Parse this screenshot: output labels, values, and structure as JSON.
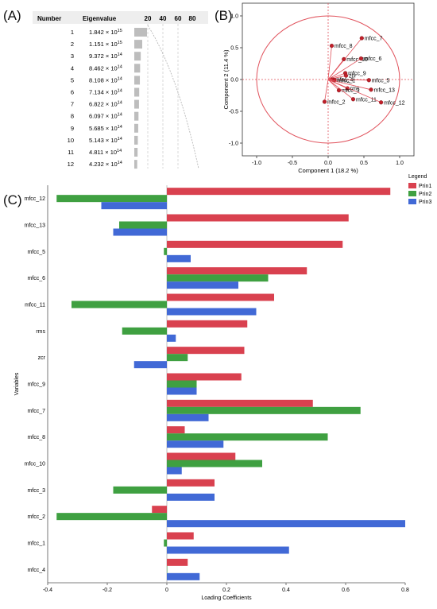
{
  "panels": {
    "a_label": "(A)",
    "b_label": "(B)",
    "c_label": "(C)"
  },
  "chart_data": [
    {
      "type": "table",
      "panel": "(A)",
      "columns": [
        "Number",
        "Eigenvalue"
      ],
      "bar_axis_ticks": [
        "20",
        "40",
        "60",
        "80"
      ],
      "rows": [
        {
          "number": "1",
          "eigen_text": "1.842 × 10",
          "exp": "15",
          "value": 1842000000000000.0
        },
        {
          "number": "2",
          "eigen_text": "1.151 × 10",
          "exp": "15",
          "value": 1151000000000000.0
        },
        {
          "number": "3",
          "eigen_text": "9.372 × 10",
          "exp": "14",
          "value": 937200000000000.0
        },
        {
          "number": "4",
          "eigen_text": "8.462 × 10",
          "exp": "14",
          "value": 846200000000000.0
        },
        {
          "number": "5",
          "eigen_text": "8.108 × 10",
          "exp": "14",
          "value": 810800000000000.0
        },
        {
          "number": "6",
          "eigen_text": "7.134 × 10",
          "exp": "14",
          "value": 713400000000000.0
        },
        {
          "number": "7",
          "eigen_text": "6.822 × 10",
          "exp": "14",
          "value": 682200000000000.0
        },
        {
          "number": "8",
          "eigen_text": "6.097 × 10",
          "exp": "14",
          "value": 609700000000000.0
        },
        {
          "number": "9",
          "eigen_text": "5.685 × 10",
          "exp": "14",
          "value": 568500000000000.0
        },
        {
          "number": "10",
          "eigen_text": "5.143 × 10",
          "exp": "14",
          "value": 514300000000000.0
        },
        {
          "number": "11",
          "eigen_text": "4.811 × 10",
          "exp": "14",
          "value": 481100000000000.0
        },
        {
          "number": "12",
          "eigen_text": "4.232 × 10",
          "exp": "14",
          "value": 423200000000000.0
        }
      ],
      "bar_color": "#bdbdbd"
    },
    {
      "type": "scatter",
      "panel": "(B)",
      "xlabel": "Component 1 (18.2 %)",
      "ylabel": "Component 2 (11.4 %)",
      "xlim": [
        -1.2,
        1.2
      ],
      "ylim": [
        -1.2,
        1.2
      ],
      "xticks": [
        "-1.0",
        "-0.5",
        "0.0",
        "0.5",
        "1.0"
      ],
      "yticks": [
        "1.0",
        "0.5",
        "0.0",
        "-0.5",
        "-1.0"
      ],
      "circle_color": "#e0505a",
      "point_color": "#c0202a",
      "points": [
        {
          "label": "mfcc_7",
          "x": 0.47,
          "y": 0.65
        },
        {
          "label": "mfcc_8",
          "x": 0.05,
          "y": 0.53
        },
        {
          "label": "mfcc_10",
          "x": 0.22,
          "y": 0.32
        },
        {
          "label": "mfcc_6",
          "x": 0.46,
          "y": 0.33
        },
        {
          "label": "mfcc_9",
          "x": 0.24,
          "y": 0.1
        },
        {
          "label": "zcr",
          "x": 0.25,
          "y": 0.06
        },
        {
          "label": "mfcc_4",
          "x": 0.06,
          "y": 0.0
        },
        {
          "label": "mfcc_5",
          "x": 0.57,
          "y": -0.01
        },
        {
          "label": "rms",
          "x": 0.27,
          "y": -0.14
        },
        {
          "label": "mfcc_1",
          "x": 0.09,
          "y": -0.01
        },
        {
          "label": "mfcc_3",
          "x": 0.15,
          "y": -0.17
        },
        {
          "label": "mfcc_13",
          "x": 0.6,
          "y": -0.16
        },
        {
          "label": "mfcc_11",
          "x": 0.35,
          "y": -0.31
        },
        {
          "label": "mfcc_12",
          "x": 0.74,
          "y": -0.36
        },
        {
          "label": "mfcc_2",
          "x": -0.05,
          "y": -0.35
        }
      ]
    },
    {
      "type": "bar",
      "panel": "(C)",
      "orientation": "horizontal",
      "ylabel": "Variables",
      "xlabel": "Loading Coefficients",
      "xlim": [
        -0.4,
        0.8
      ],
      "xticks": [
        -0.4,
        -0.2,
        0,
        0.2,
        0.4,
        0.6,
        0.8
      ],
      "xtick_labels": [
        "-0.4",
        "-0.2",
        "0",
        "0.2",
        "0.4",
        "0.6",
        "0.8"
      ],
      "legend_title": "Legend",
      "legend_position": "top-right",
      "categories": [
        "mfcc_12",
        "mfcc_13",
        "mfcc_5",
        "mfcc_6",
        "mfcc_11",
        "rms",
        "zcr",
        "mfcc_9",
        "mfcc_7",
        "mfcc_8",
        "mfcc_10",
        "mfcc_3",
        "mfcc_2",
        "mfcc_1",
        "mfcc_4"
      ],
      "series": [
        {
          "name": "Prin1",
          "color": "#d9414f",
          "values": [
            0.75,
            0.61,
            0.59,
            0.47,
            0.36,
            0.27,
            0.26,
            0.25,
            0.49,
            0.06,
            0.23,
            0.16,
            -0.05,
            0.09,
            0.07
          ]
        },
        {
          "name": "Prin2",
          "color": "#3fa041",
          "values": [
            -0.37,
            -0.16,
            -0.01,
            0.34,
            -0.32,
            -0.15,
            0.07,
            0.1,
            0.65,
            0.54,
            0.32,
            -0.18,
            -0.37,
            -0.01,
            0.0
          ]
        },
        {
          "name": "Prin3",
          "color": "#4169d6",
          "values": [
            -0.22,
            -0.18,
            0.08,
            0.24,
            0.3,
            0.03,
            -0.11,
            0.1,
            0.14,
            0.19,
            0.05,
            0.16,
            0.8,
            0.41,
            0.11
          ]
        }
      ]
    }
  ]
}
